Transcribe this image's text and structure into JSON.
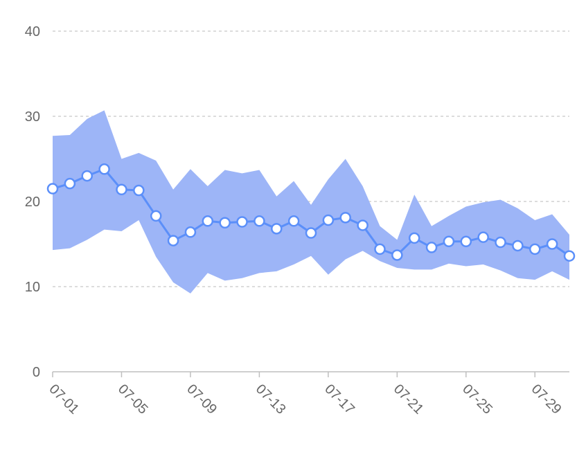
{
  "chart_data": {
    "type": "area",
    "title": "",
    "xlabel": "",
    "ylabel": "",
    "ylim": [
      0,
      40
    ],
    "yticks": [
      0,
      10,
      20,
      30,
      40
    ],
    "grid": true,
    "legend": "none",
    "x": [
      "07-01",
      "07-02",
      "07-03",
      "07-04",
      "07-05",
      "07-06",
      "07-07",
      "07-08",
      "07-09",
      "07-10",
      "07-11",
      "07-12",
      "07-13",
      "07-14",
      "07-15",
      "07-16",
      "07-17",
      "07-18",
      "07-19",
      "07-20",
      "07-21",
      "07-22",
      "07-23",
      "07-24",
      "07-25",
      "07-26",
      "07-27",
      "07-28",
      "07-29",
      "07-30",
      "07-31"
    ],
    "xtick_labels": [
      "07-01",
      "07-05",
      "07-09",
      "07-13",
      "07-17",
      "07-21",
      "07-25",
      "07-29"
    ],
    "series": [
      {
        "kind": "range",
        "low": [
          14.3,
          14.5,
          15.5,
          16.7,
          16.5,
          17.8,
          13.5,
          10.5,
          9.2,
          11.6,
          10.7,
          11.0,
          11.6,
          11.8,
          12.6,
          13.6,
          11.4,
          13.2,
          14.2,
          13.0,
          12.2,
          12.0,
          12.0,
          12.7,
          12.4,
          12.6,
          11.9,
          11.0,
          10.8,
          11.8,
          10.8
        ],
        "high": [
          27.7,
          27.8,
          29.7,
          30.7,
          25.0,
          25.7,
          24.8,
          21.4,
          23.8,
          21.8,
          23.7,
          23.3,
          23.7,
          20.6,
          22.4,
          19.6,
          22.6,
          25.0,
          21.8,
          17.1,
          15.5,
          20.8,
          17.1,
          18.3,
          19.4,
          19.9,
          20.2,
          19.2,
          17.8,
          18.5,
          16.1
        ]
      },
      {
        "kind": "line",
        "values": [
          21.5,
          22.1,
          23.0,
          23.8,
          21.4,
          21.3,
          18.3,
          15.4,
          16.4,
          17.7,
          17.5,
          17.6,
          17.7,
          16.8,
          17.7,
          16.3,
          17.8,
          18.1,
          17.2,
          14.4,
          13.7,
          15.7,
          14.6,
          15.3,
          15.3,
          15.8,
          15.2,
          14.8,
          14.4,
          15.0,
          13.6
        ]
      }
    ],
    "colors": {
      "band": "#9db5f7",
      "line": "#5b8ff9",
      "point_fill": "#ffffff",
      "grid": "#c8c8c8",
      "axis": "#bfbfbf",
      "label": "#666666"
    }
  }
}
